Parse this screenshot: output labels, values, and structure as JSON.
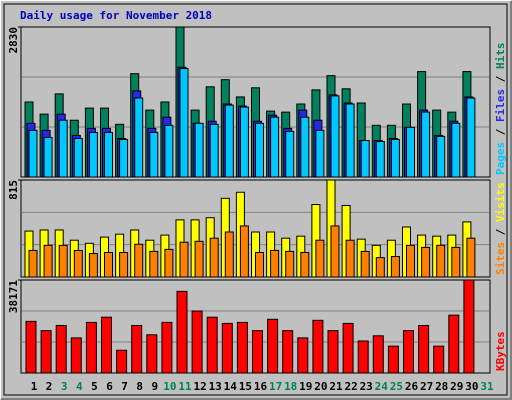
{
  "chart_data": {
    "type": "bar",
    "title": "Daily usage for November 2018",
    "legend_separator": " / ",
    "categories": [
      "1",
      "2",
      "3",
      "4",
      "5",
      "6",
      "7",
      "8",
      "9",
      "10",
      "11",
      "12",
      "13",
      "14",
      "15",
      "16",
      "17",
      "18",
      "19",
      "20",
      "21",
      "22",
      "23",
      "24",
      "25",
      "26",
      "27",
      "28",
      "29",
      "30",
      "31"
    ],
    "category_colors": [
      "#000000",
      "#000000",
      "#00805c",
      "#00805c",
      "#000000",
      "#000000",
      "#000000",
      "#000000",
      "#000000",
      "#00805c",
      "#00805c",
      "#000000",
      "#000000",
      "#000000",
      "#000000",
      "#000000",
      "#00805c",
      "#00805c",
      "#000000",
      "#000000",
      "#000000",
      "#000000",
      "#000000",
      "#00805c",
      "#00805c",
      "#000000",
      "#000000",
      "#000000",
      "#000000",
      "#000000",
      "#00805c"
    ],
    "panels": [
      {
        "ylim": [
          0,
          2830
        ],
        "yticks": [
          2830
        ],
        "grid": true,
        "series": [
          {
            "name": "Hits",
            "color": "#00805c",
            "values": [
              1415,
              1186,
              1568,
              1071,
              1300,
              1300,
              994,
              1950,
              1262,
              1415,
              2830,
              1262,
              1702,
              1836,
              1511,
              1683,
              1243,
              1224,
              1377,
              1644,
              1912,
              1664,
              1396,
              975,
              975,
              1377,
              1989,
              1262,
              1224,
              1989,
              0
            ]
          },
          {
            "name": "Files",
            "color": "#2828e8",
            "values": [
              1013,
              880,
              1185,
              784,
              918,
              918,
              727,
              1625,
              918,
              1128,
              2070,
              1013,
              1052,
              1377,
              1338,
              1052,
              1166,
              918,
              1262,
              1071,
              1549,
              1396,
              688,
              688,
              727,
              937,
              1262,
              784,
              1052,
              1510,
              0
            ]
          },
          {
            "name": "Pages",
            "color": "#00c8ff",
            "values": [
              880,
              746,
              1071,
              727,
              841,
              841,
              707,
              1491,
              841,
              975,
              2046,
              1013,
              994,
              1357,
              1319,
              1013,
              1128,
              860,
              1128,
              880,
              1530,
              1377,
              688,
              669,
              707,
              937,
              1224,
              765,
              1013,
              1490,
              0
            ]
          }
        ]
      },
      {
        "ylim": [
          0,
          815
        ],
        "yticks": [
          815
        ],
        "grid": true,
        "series": [
          {
            "name": "Visits",
            "color": "#ffff00",
            "values": [
              386,
              395,
              395,
              309,
              283,
              335,
              360,
              395,
              309,
              352,
              480,
              480,
              498,
              661,
              712,
              378,
              378,
              326,
              343,
              609,
              815,
              601,
              318,
              266,
              309,
              420,
              352,
              343,
              352,
              463,
              0
            ]
          },
          {
            "name": "Sites",
            "color": "#ff8000",
            "values": [
              223,
              266,
              266,
              223,
              197,
              206,
              206,
              275,
              215,
              232,
              292,
              300,
              326,
              378,
              429,
              206,
              223,
              215,
              206,
              309,
              429,
              309,
              215,
              163,
              172,
              266,
              249,
              266,
              249,
              326,
              0
            ]
          }
        ]
      },
      {
        "ylim": [
          0,
          38171
        ],
        "yticks": [
          38171
        ],
        "grid": true,
        "series": [
          {
            "name": "KBytes",
            "color": "#ff0000",
            "values": [
              21200,
              17384,
              19504,
              14416,
              20776,
              22896,
              9328,
              19504,
              15688,
              20776,
              33496,
              25440,
              22896,
              20352,
              20776,
              17384,
              22048,
              17384,
              14416,
              21624,
              17384,
              20352,
              13144,
              15264,
              11024,
              17384,
              19504,
              11024,
              23744,
              38171,
              0
            ]
          }
        ]
      }
    ]
  }
}
